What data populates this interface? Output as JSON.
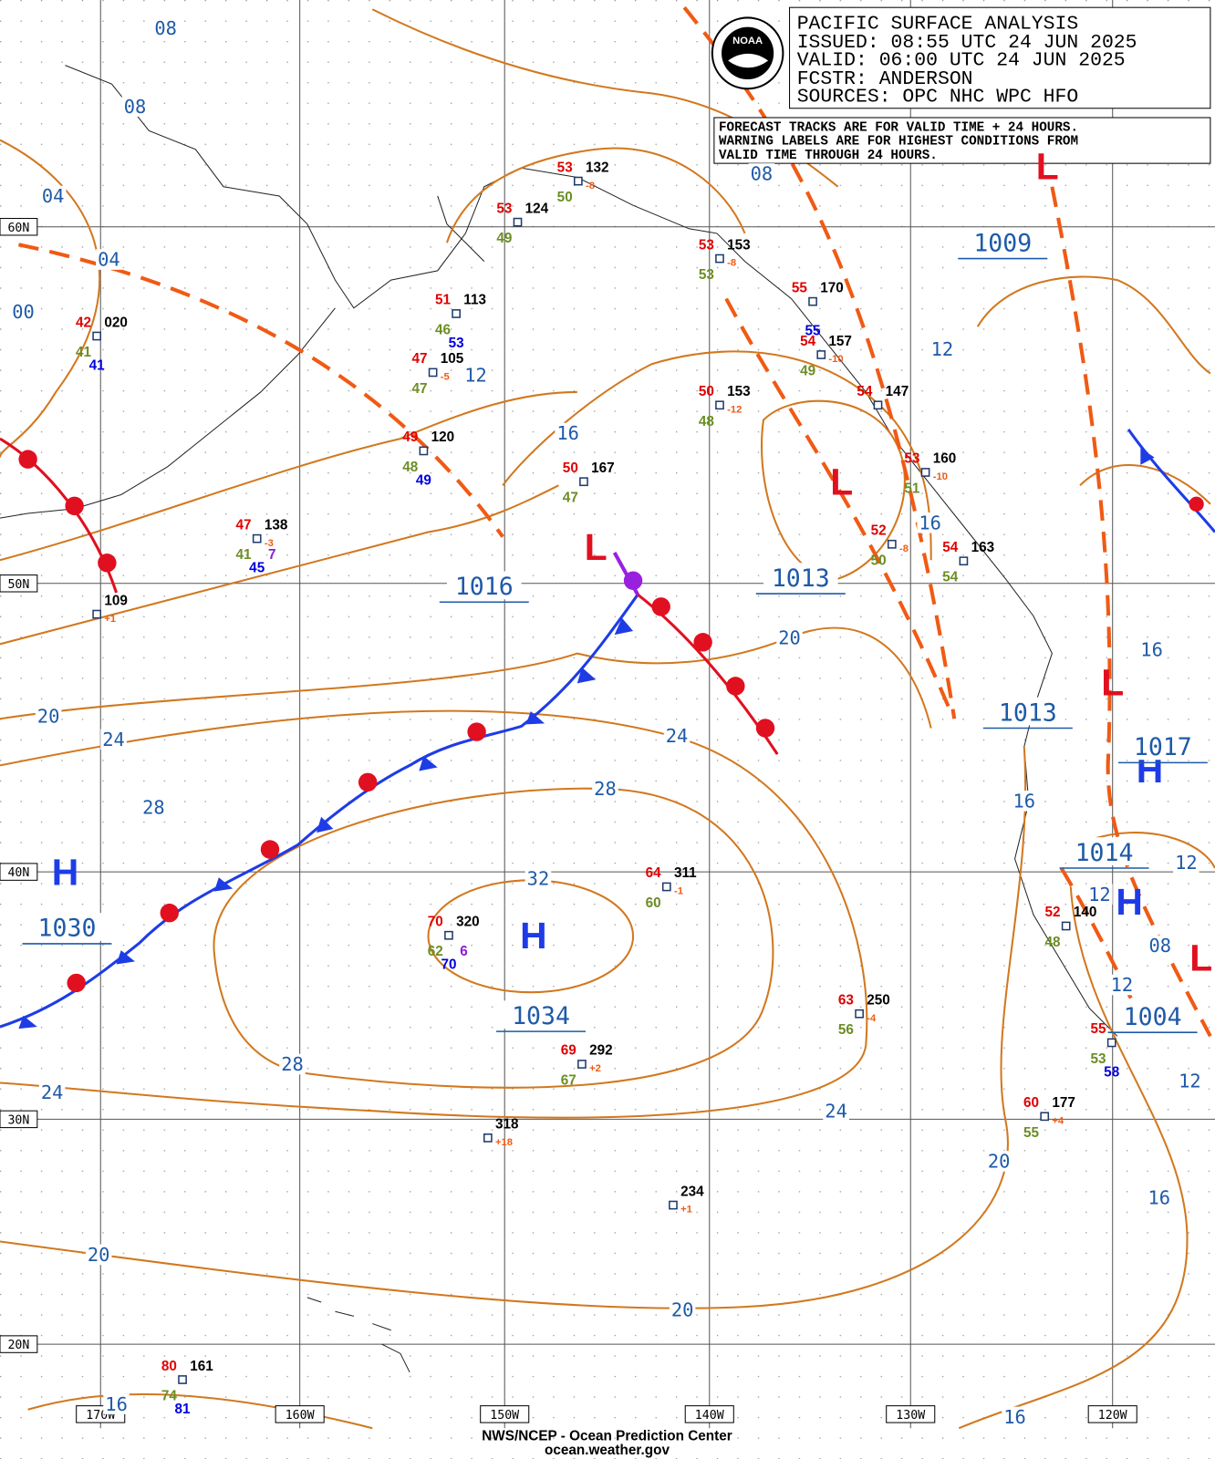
{
  "header": {
    "title": "PACIFIC SURFACE ANALYSIS",
    "issued": "ISSUED: 08:55 UTC 24 JUN 2025",
    "valid": "VALID:  06:00 UTC 24 JUN 2025",
    "forecaster": "FCSTR:  ANDERSON",
    "sources": "SOURCES: OPC NHC WPC HFO"
  },
  "logo": "NOAA",
  "note": [
    "FORECAST TRACKS ARE FOR VALID TIME + 24 HOURS.",
    "WARNING LABELS ARE FOR HIGHEST CONDITIONS FROM",
    "VALID TIME THROUGH 24 HOURS."
  ],
  "latitudes": [
    "60N",
    "50N",
    "40N",
    "30N",
    "20N"
  ],
  "longitudes": [
    "170W",
    "160W",
    "150W",
    "140W",
    "130W",
    "120W"
  ],
  "isobar_labels": [
    "08",
    "08",
    "04",
    "04",
    "00",
    "12",
    "16",
    "08",
    "12",
    "16",
    "20",
    "16",
    "20",
    "24",
    "24",
    "28",
    "28",
    "16",
    "32",
    "12",
    "12",
    "08",
    "12",
    "28",
    "24",
    "24",
    "12",
    "20",
    "16",
    "20",
    "20",
    "16",
    "16"
  ],
  "centers": [
    {
      "symbol": "L",
      "pressure": "1016"
    },
    {
      "symbol": "L",
      "pressure": "1009"
    },
    {
      "symbol": "L",
      "pressure": "1013"
    },
    {
      "symbol": "L",
      "pressure": "1013"
    },
    {
      "symbol": "H",
      "pressure": "1017"
    },
    {
      "symbol": "H",
      "pressure": "1014"
    },
    {
      "symbol": "L",
      "pressure": "1004"
    },
    {
      "symbol": "H",
      "pressure": "1030"
    },
    {
      "symbol": "H",
      "pressure": "1034"
    }
  ],
  "stations": [
    {
      "temp": "42",
      "pressure": "020",
      "dewpoint": "41",
      "visibility": "41"
    },
    {
      "temp": "47",
      "pressure": "105",
      "tendency": "-5",
      "dewpoint": "47"
    },
    {
      "temp": "51",
      "pressure": "113",
      "dewpoint": "46",
      "visibility": "53"
    },
    {
      "temp": "49",
      "pressure": "120",
      "dewpoint": "48",
      "visibility": "49"
    },
    {
      "temp": "47",
      "pressure": "138",
      "tendency": "-3",
      "dewpoint": "41",
      "visibility": "45",
      "wave": "7"
    },
    {
      "pressure": "109",
      "tendency": "+1"
    },
    {
      "temp": "53",
      "pressure": "124",
      "dewpoint": "49"
    },
    {
      "temp": "53",
      "pressure": "132",
      "tendency": "-8",
      "dewpoint": "50"
    },
    {
      "temp": "53",
      "pressure": "153",
      "tendency": "-8",
      "dewpoint": "53"
    },
    {
      "temp": "55",
      "pressure": "170",
      "visibility": "55"
    },
    {
      "temp": "54",
      "pressure": "157",
      "tendency": "-10",
      "dewpoint": "49"
    },
    {
      "temp": "50",
      "pressure": "153",
      "tendency": "-12",
      "dewpoint": "48"
    },
    {
      "temp": "54",
      "pressure": "147"
    },
    {
      "temp": "50",
      "pressure": "167",
      "dewpoint": "47"
    },
    {
      "temp": "53",
      "pressure": "160",
      "tendency": "-10",
      "dewpoint": "51"
    },
    {
      "temp": "52",
      "tendency": "-8",
      "dewpoint": "50"
    },
    {
      "temp": "54",
      "pressure": "163",
      "dewpoint": "54"
    },
    {
      "temp": "64",
      "pressure": "311",
      "tendency": "-1",
      "dewpoint": "60"
    },
    {
      "temp": "70",
      "pressure": "320",
      "dewpoint": "62",
      "visibility": "70",
      "wave": "6"
    },
    {
      "temp": "69",
      "pressure": "292",
      "tendency": "+2",
      "dewpoint": "67"
    },
    {
      "temp": "63",
      "pressure": "250",
      "tendency": "-4",
      "dewpoint": "56"
    },
    {
      "pressure": "318",
      "tendency": "+18"
    },
    {
      "pressure": "234",
      "tendency": "+1"
    },
    {
      "temp": "52",
      "pressure": "140",
      "dewpoint": "48"
    },
    {
      "temp": "55",
      "dewpoint": "53",
      "visibility": "58"
    },
    {
      "temp": "60",
      "pressure": "177",
      "tendency": "+4",
      "dewpoint": "55"
    },
    {
      "temp": "80",
      "pressure": "161",
      "dewpoint": "74",
      "visibility": "81"
    }
  ],
  "footer": [
    "NWS/NCEP - Ocean Prediction Center",
    "ocean.weather.gov"
  ]
}
